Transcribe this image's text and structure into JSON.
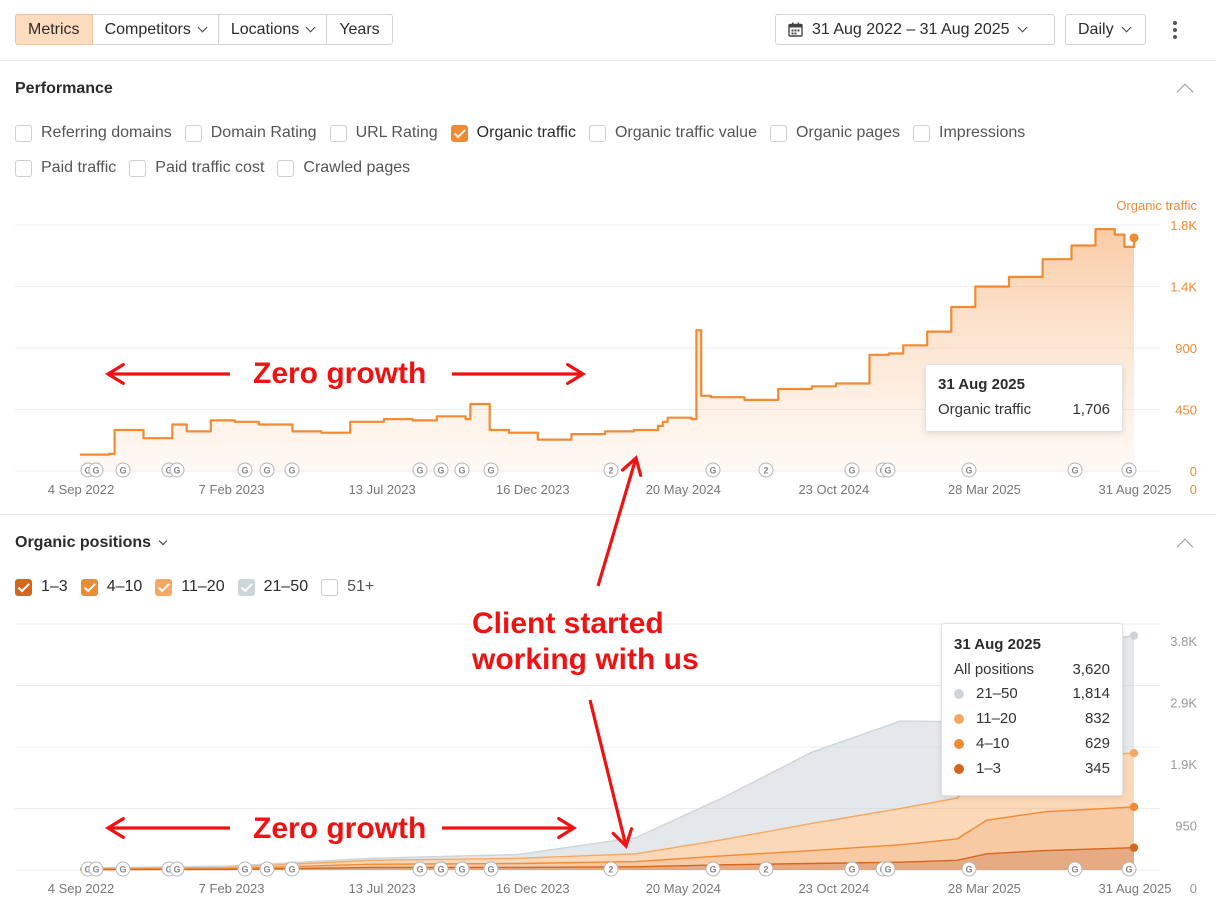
{
  "toolbar": {
    "tabs": [
      {
        "label": "Metrics",
        "active": true,
        "dropdown": false
      },
      {
        "label": "Competitors",
        "dropdown": true
      },
      {
        "label": "Locations",
        "dropdown": true
      },
      {
        "label": "Years",
        "dropdown": false
      }
    ],
    "date_range": "31 Aug 2022 – 31 Aug 2025",
    "interval": "Daily"
  },
  "performance": {
    "title": "Performance",
    "metrics": [
      {
        "label": "Referring domains",
        "checked": false
      },
      {
        "label": "Domain Rating",
        "checked": false
      },
      {
        "label": "URL Rating",
        "checked": false
      },
      {
        "label": "Organic traffic",
        "checked": true,
        "color": "#f08a33"
      },
      {
        "label": "Organic traffic value",
        "checked": false
      },
      {
        "label": "Organic pages",
        "checked": false
      },
      {
        "label": "Impressions",
        "checked": false
      },
      {
        "label": "Paid traffic",
        "checked": false
      },
      {
        "label": "Paid traffic cost",
        "checked": false
      },
      {
        "label": "Crawled pages",
        "checked": false
      }
    ],
    "tooltip": {
      "date": "31 Aug 2025",
      "label": "Organic traffic",
      "value": "1,706"
    }
  },
  "organic_positions": {
    "title": "Organic positions",
    "filters": [
      {
        "label": "1–3",
        "checked": true,
        "color": "#d4661d"
      },
      {
        "label": "4–10",
        "checked": true,
        "color": "#f08a33"
      },
      {
        "label": "11–20",
        "checked": true,
        "color": "#f6a862"
      },
      {
        "label": "21–50",
        "checked": true,
        "color": "#cdd5d9"
      },
      {
        "label": "51+",
        "checked": false
      }
    ],
    "tooltip": {
      "date": "31 Aug 2025",
      "total_label": "All positions",
      "total_value": "3,620",
      "rows": [
        {
          "label": "21–50",
          "value": "1,814",
          "color": "#cdd5d9"
        },
        {
          "label": "11–20",
          "value": "832",
          "color": "#f6a862"
        },
        {
          "label": "4–10",
          "value": "629",
          "color": "#f08a33"
        },
        {
          "label": "1–3",
          "value": "345",
          "color": "#d4661d"
        }
      ]
    }
  },
  "annotations": {
    "zero_growth": "Zero growth",
    "client_started": [
      "Client started",
      "working with us"
    ]
  },
  "chart_data": [
    {
      "type": "area",
      "title": "",
      "series_label": "Organic traffic",
      "x": [
        "2022-08-31",
        "2022-09-30",
        "2022-10-06",
        "2022-11-05",
        "2022-12-05",
        "2022-12-20",
        "2023-01-14",
        "2023-02-08",
        "2023-03-05",
        "2023-04-09",
        "2023-05-09",
        "2023-06-08",
        "2023-07-13",
        "2023-08-12",
        "2023-09-06",
        "2023-10-06",
        "2023-10-11",
        "2023-10-31",
        "2023-11-20",
        "2023-12-20",
        "2024-01-24",
        "2024-02-28",
        "2024-03-29",
        "2024-04-23",
        "2024-04-28",
        "2024-05-03",
        "2024-05-28",
        "2024-06-02",
        "2024-06-07",
        "2024-06-17",
        "2024-07-22",
        "2024-08-26",
        "2024-09-30",
        "2024-10-25",
        "2024-11-29",
        "2024-12-19",
        "2025-01-03",
        "2025-01-28",
        "2025-02-22",
        "2025-03-19",
        "2025-04-23",
        "2025-05-28",
        "2025-06-27",
        "2025-07-22",
        "2025-08-11",
        "2025-08-21",
        "2025-08-31"
      ],
      "values": [
        120,
        125,
        300,
        240,
        340,
        290,
        370,
        360,
        340,
        290,
        280,
        360,
        380,
        370,
        400,
        380,
        490,
        300,
        280,
        230,
        270,
        290,
        300,
        330,
        360,
        390,
        380,
        1030,
        550,
        540,
        520,
        600,
        620,
        640,
        850,
        860,
        920,
        1020,
        1200,
        1350,
        1420,
        1550,
        1650,
        1770,
        1730,
        1640,
        1706
      ],
      "ylim": [
        0,
        1800
      ],
      "yticks": [
        "0",
        "450",
        "900",
        "1.4K",
        "1.8K"
      ],
      "xticks": [
        "4 Sep 2022",
        "7 Feb 2023",
        "13 Jul 2023",
        "16 Dec 2023",
        "20 May 2024",
        "23 Oct 2024",
        "28 Mar 2025",
        "31 Aug 2025"
      ],
      "legend_label": "Organic traffic",
      "color": "#f08a33"
    },
    {
      "type": "area",
      "title": "",
      "stacked": true,
      "x": [
        "2022-08-31",
        "2023-01-31",
        "2023-06-30",
        "2023-11-30",
        "2024-03-31",
        "2024-06-30",
        "2024-09-30",
        "2024-12-31",
        "2025-02-28",
        "2025-03-31",
        "2025-05-31",
        "2025-08-31"
      ],
      "series": [
        {
          "name": "1–3",
          "values": [
            5,
            10,
            40,
            40,
            50,
            80,
            100,
            120,
            150,
            250,
            300,
            345
          ],
          "color": "#d4661d"
        },
        {
          "name": "4–10",
          "values": [
            5,
            10,
            50,
            60,
            80,
            140,
            200,
            270,
            330,
            520,
            600,
            629
          ]
        },
        {
          "name": "11–20",
          "values": [
            10,
            20,
            60,
            80,
            120,
            250,
            420,
            560,
            630,
            780,
            830,
            832
          ]
        },
        {
          "name": "21–50",
          "values": [
            10,
            20,
            30,
            60,
            250,
            650,
            1100,
            1350,
            1180,
            1500,
            1700,
            1814
          ]
        }
      ],
      "ylim": [
        0,
        3800
      ],
      "yticks": [
        "0",
        "950",
        "1.9K",
        "2.9K",
        "3.8K"
      ],
      "xticks": [
        "4 Sep 2022",
        "7 Feb 2023",
        "13 Jul 2023",
        "16 Dec 2023",
        "20 May 2024",
        "23 Oct 2024",
        "28 Mar 2025",
        "31 Aug 2025"
      ]
    }
  ],
  "event_markers": {
    "top": [
      "G",
      "G",
      "G",
      "G",
      "G",
      "G",
      "G",
      "G",
      "G",
      "G",
      "G",
      "G",
      "2",
      "G",
      "2",
      "G",
      "G",
      "G",
      "G",
      "G",
      "G"
    ],
    "bottom": [
      "G",
      "G",
      "G",
      "G",
      "G",
      "G",
      "G",
      "G",
      "G",
      "G",
      "G",
      "G",
      "2",
      "G",
      "2",
      "G",
      "G",
      "G",
      "G",
      "G",
      "G"
    ]
  }
}
